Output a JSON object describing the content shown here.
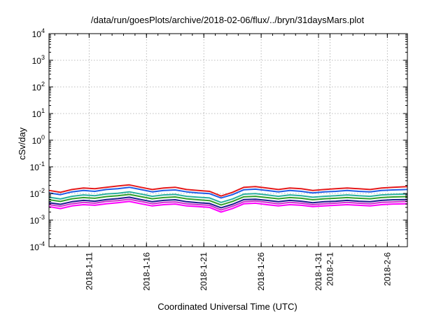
{
  "chart_data": {
    "type": "line",
    "title": "/data/run/goesPlots/archive/2018-02-06/flux/../bryn/31daysMars.plot",
    "xlabel": "Coordinated Universal Time (UTC)",
    "ylabel": "cSv/day",
    "yscale": "log",
    "ylim": [
      0.0001,
      10000
    ],
    "xlim": [
      "2018-01-07T12:00",
      "2018-02-07T18:00"
    ],
    "grid": true,
    "x_ticks": [
      {
        "date": "2018-01-11T00:00",
        "label": "2018-1-11"
      },
      {
        "date": "2018-01-16T00:00",
        "label": "2018-1-16"
      },
      {
        "date": "2018-01-21T00:00",
        "label": "2018-1-21"
      },
      {
        "date": "2018-01-26T00:00",
        "label": "2018-1-26"
      },
      {
        "date": "2018-01-31T00:00",
        "label": "2018-1-31"
      },
      {
        "date": "2018-02-01T00:00",
        "label": "2018-2-1"
      },
      {
        "date": "2018-02-06T00:00",
        "label": "2018-2-6"
      }
    ],
    "y_ticks": [
      {
        "value": 0.0001,
        "base": "10",
        "exp": "-4"
      },
      {
        "value": 0.001,
        "base": "10",
        "exp": "-3"
      },
      {
        "value": 0.01,
        "base": "10",
        "exp": "-2"
      },
      {
        "value": 0.1,
        "base": "10",
        "exp": "-1"
      },
      {
        "value": 1,
        "base": "10",
        "exp": "0"
      },
      {
        "value": 10,
        "base": "10",
        "exp": "1"
      },
      {
        "value": 100,
        "base": "10",
        "exp": "2"
      },
      {
        "value": 1000,
        "base": "10",
        "exp": "3"
      },
      {
        "value": 10000,
        "base": "10",
        "exp": "4"
      }
    ],
    "x": [
      "2018-01-07T12:00",
      "2018-01-08T12:00",
      "2018-01-09T12:00",
      "2018-01-10T12:00",
      "2018-01-11T12:00",
      "2018-01-12T12:00",
      "2018-01-13T12:00",
      "2018-01-14T12:00",
      "2018-01-15T12:00",
      "2018-01-16T12:00",
      "2018-01-17T12:00",
      "2018-01-18T12:00",
      "2018-01-19T12:00",
      "2018-01-20T12:00",
      "2018-01-21T12:00",
      "2018-01-22T12:00",
      "2018-01-23T12:00",
      "2018-01-24T12:00",
      "2018-01-25T12:00",
      "2018-01-26T12:00",
      "2018-01-27T12:00",
      "2018-01-28T12:00",
      "2018-01-29T12:00",
      "2018-01-30T12:00",
      "2018-01-31T12:00",
      "2018-02-01T12:00",
      "2018-02-02T12:00",
      "2018-02-03T12:00",
      "2018-02-04T12:00",
      "2018-02-05T12:00",
      "2018-02-06T12:00",
      "2018-02-07T18:00"
    ],
    "series": [
      {
        "color": "#e41a1c",
        "values": [
          0.013,
          0.011,
          0.014,
          0.016,
          0.015,
          0.017,
          0.019,
          0.021,
          0.017,
          0.014,
          0.016,
          0.017,
          0.014,
          0.013,
          0.012,
          0.008,
          0.011,
          0.017,
          0.018,
          0.016,
          0.014,
          0.016,
          0.015,
          0.013,
          0.014,
          0.015,
          0.016,
          0.015,
          0.014,
          0.016,
          0.017,
          0.018
        ]
      },
      {
        "color": "#1f5ee6",
        "values": [
          0.0105,
          0.009,
          0.0115,
          0.013,
          0.012,
          0.014,
          0.015,
          0.017,
          0.014,
          0.0115,
          0.013,
          0.0135,
          0.0115,
          0.0105,
          0.0098,
          0.0068,
          0.009,
          0.0138,
          0.0145,
          0.013,
          0.0115,
          0.013,
          0.012,
          0.0105,
          0.0115,
          0.012,
          0.013,
          0.012,
          0.0115,
          0.013,
          0.0135,
          0.014
        ]
      },
      {
        "color": "#2ab0a0",
        "values": [
          0.0072,
          0.0062,
          0.0078,
          0.0088,
          0.0082,
          0.0095,
          0.0102,
          0.0115,
          0.0095,
          0.0078,
          0.0088,
          0.0092,
          0.0078,
          0.0072,
          0.0068,
          0.0046,
          0.0062,
          0.0094,
          0.0098,
          0.0088,
          0.0078,
          0.0088,
          0.0082,
          0.0072,
          0.0078,
          0.0082,
          0.0088,
          0.0082,
          0.0078,
          0.0088,
          0.0092,
          0.0095
        ]
      },
      {
        "color": "#33a02c",
        "values": [
          0.0058,
          0.005,
          0.0063,
          0.007,
          0.0066,
          0.0076,
          0.0082,
          0.0092,
          0.0076,
          0.0063,
          0.007,
          0.0074,
          0.0063,
          0.0058,
          0.0054,
          0.0037,
          0.005,
          0.0075,
          0.0078,
          0.007,
          0.0063,
          0.007,
          0.0066,
          0.0058,
          0.0063,
          0.0066,
          0.007,
          0.0066,
          0.0063,
          0.007,
          0.0074,
          0.0076
        ]
      },
      {
        "color": "#1c1c8f",
        "values": [
          0.0045,
          0.0039,
          0.0049,
          0.0055,
          0.0051,
          0.0059,
          0.0064,
          0.0072,
          0.0059,
          0.0049,
          0.0055,
          0.0058,
          0.0049,
          0.0045,
          0.0042,
          0.0029,
          0.0039,
          0.0059,
          0.0061,
          0.0055,
          0.0049,
          0.0055,
          0.0051,
          0.0045,
          0.0049,
          0.0051,
          0.0055,
          0.0051,
          0.0049,
          0.0055,
          0.0058,
          0.0059
        ]
      },
      {
        "color": "#cc33cc",
        "values": [
          0.0038,
          0.0033,
          0.0041,
          0.0046,
          0.0043,
          0.005,
          0.0054,
          0.006,
          0.005,
          0.0041,
          0.0046,
          0.0048,
          0.0041,
          0.0038,
          0.0036,
          0.0024,
          0.0033,
          0.0049,
          0.0052,
          0.0046,
          0.0041,
          0.0046,
          0.0043,
          0.0038,
          0.0041,
          0.0043,
          0.0046,
          0.0043,
          0.0041,
          0.0046,
          0.0048,
          0.005
        ]
      },
      {
        "color": "#ff00ff",
        "values": [
          0.0032,
          0.0027,
          0.0034,
          0.0038,
          0.0036,
          0.0041,
          0.0045,
          0.005,
          0.0041,
          0.0034,
          0.0038,
          0.004,
          0.0034,
          0.0032,
          0.003,
          0.002,
          0.0027,
          0.0041,
          0.0043,
          0.0038,
          0.0034,
          0.0038,
          0.0036,
          0.0032,
          0.0034,
          0.0036,
          0.0038,
          0.0036,
          0.0034,
          0.0038,
          0.004,
          0.0041
        ]
      }
    ]
  }
}
